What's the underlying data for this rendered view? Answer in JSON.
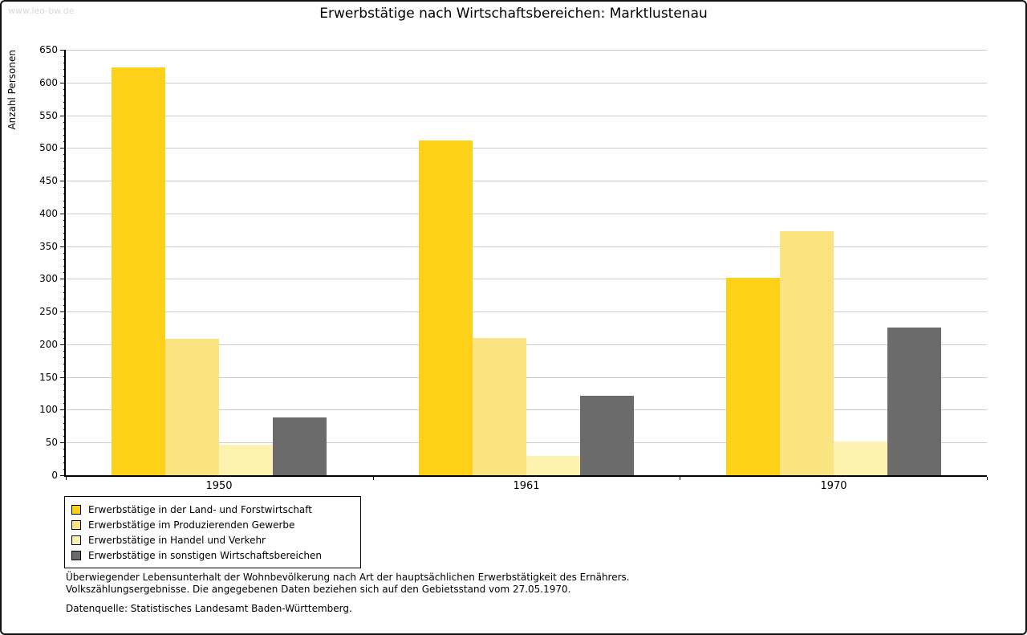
{
  "page": {
    "watermark": "www.leo-bw.de"
  },
  "chart_data": {
    "type": "bar",
    "title": "Erwerbstätige nach Wirtschaftsbereichen: Marktlustenau",
    "xlabel": "",
    "ylabel": "Anzahl Personen",
    "categories": [
      "1950",
      "1961",
      "1970"
    ],
    "series": [
      {
        "name": "Erwerbstätige in der Land- und Forstwirtschaft",
        "color": "#fcd118",
        "values": [
          623,
          511,
          302
        ]
      },
      {
        "name": "Erwerbstätige im Produzierenden Gewerbe",
        "color": "#fae482",
        "values": [
          208,
          210,
          373
        ]
      },
      {
        "name": "Erwerbstätige in Handel und Verkehr",
        "color": "#fdf2b0",
        "values": [
          47,
          30,
          52
        ]
      },
      {
        "name": "Erwerbstätige in sonstigen Wirtschaftsbereichen",
        "color": "#6b6b6b",
        "values": [
          88,
          122,
          226
        ]
      }
    ],
    "ylim": [
      0,
      650
    ],
    "ytick_step": 50,
    "ytick_minor_step": 10,
    "grid": true,
    "legend_position": "bottom-left"
  },
  "notes": {
    "line1": "Überwiegender Lebensunterhalt der Wohnbevölkerung nach Art der hauptsächlichen Erwerbstätigkeit des Ernährers.",
    "line2": "Volkszählungsergebnisse. Die angegebenen Daten beziehen sich auf den Gebietsstand vom 27.05.1970.",
    "source": "Datenquelle: Statistisches Landesamt Baden-Württemberg."
  }
}
